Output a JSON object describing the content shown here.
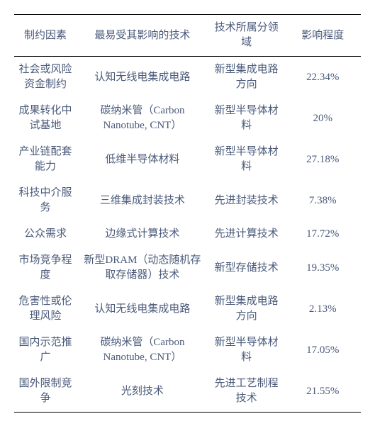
{
  "table": {
    "columns": [
      "制约因素",
      "最易受其影响的技术",
      "技术所属分领域",
      "影响程度"
    ],
    "rows": [
      {
        "c1": "社会或风险资金制约",
        "c2": "认知无线电集成电路",
        "c3": "新型集成电路方向",
        "c4": "22.34%"
      },
      {
        "c1": "成果转化中试基地",
        "c2": "碳纳米管（Carbon Nanotube, CNT）",
        "c3": "新型半导体材料",
        "c4": "20%"
      },
      {
        "c1": "产业链配套能力",
        "c2": "低维半导体材料",
        "c3": "新型半导体材料",
        "c4": "27.18%"
      },
      {
        "c1": "科技中介服务",
        "c2": "三维集成封装技术",
        "c3": "先进封装技术",
        "c4": "7.38%"
      },
      {
        "c1": "公众需求",
        "c2": "边缘式计算技术",
        "c3": "先进计算技术",
        "c4": "17.72%"
      },
      {
        "c1": "市场竞争程度",
        "c2": "新型DRAM（动态随机存取存储器）技术",
        "c3": "新型存储技术",
        "c4": "19.35%"
      },
      {
        "c1": "危害性或伦理风险",
        "c2": "认知无线电集成电路",
        "c3": "新型集成电路方向",
        "c4": "2.13%"
      },
      {
        "c1": "国内示范推广",
        "c2": "碳纳米管（Carbon Nanotube, CNT）",
        "c3": "新型半导体材料",
        "c4": "17.05%"
      },
      {
        "c1": "国外限制竞争",
        "c2": "光刻技术",
        "c3": "先进工艺制程技术",
        "c4": "21.55%"
      }
    ],
    "styling": {
      "text_color": "#4a5a7a",
      "border_color": "#000000",
      "background_color": "#ffffff",
      "font_size": 15,
      "font_family": "SimSun",
      "top_border_width": 1.5,
      "header_bottom_border_width": 1,
      "bottom_border_width": 1.5,
      "column_widths_pct": [
        18,
        38,
        22,
        22
      ]
    }
  }
}
